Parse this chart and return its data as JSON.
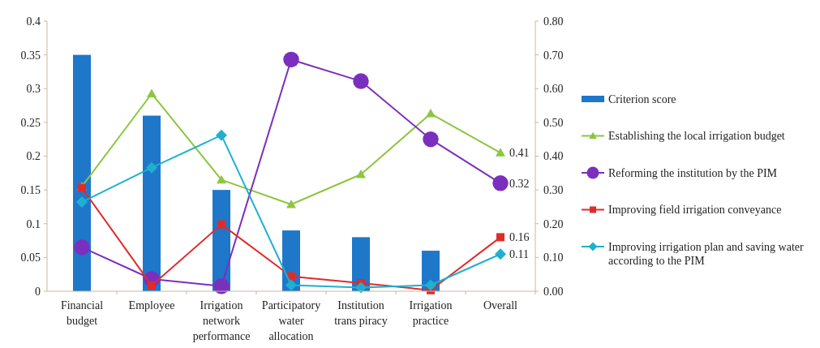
{
  "chart_data": {
    "type": "bar",
    "categories": [
      "Financial budget",
      "Employee",
      "Irrigation network performance",
      "Participatory water allocation",
      "Institution trans piracy",
      "Irrigation practice",
      "Overall"
    ],
    "series": [
      {
        "name": "Criterion score",
        "color": "#1f77c9",
        "values": [
          0.35,
          0.26,
          0.15,
          0.09,
          0.08,
          0.06,
          null
        ]
      },
      {
        "name": "Establishing the local irrigation budget",
        "type": "line",
        "axis": "y2",
        "marker": "triangle",
        "color": "#8dc63f",
        "values": [
          0.31,
          0.585,
          0.33,
          0.257,
          0.346,
          0.526,
          0.41
        ],
        "value_labels": [
          null,
          null,
          null,
          null,
          null,
          null,
          "0.41"
        ]
      },
      {
        "name": "Reforming the institution by the PIM",
        "type": "line",
        "axis": "y2",
        "marker": "circle",
        "color": "#7b2fbe",
        "values": [
          0.13,
          0.036,
          0.015,
          0.686,
          0.622,
          0.45,
          0.32
        ],
        "value_labels": [
          null,
          null,
          null,
          null,
          null,
          null,
          "0.32"
        ]
      },
      {
        "name": "Improving field irrigation conveyance",
        "type": "line",
        "axis": "y2",
        "marker": "square",
        "color": "#e02b2b",
        "values": [
          0.306,
          0.017,
          0.198,
          0.044,
          0.024,
          0.003,
          0.16
        ],
        "value_labels": [
          null,
          null,
          null,
          null,
          null,
          null,
          "0.16"
        ]
      },
      {
        "name": "Improving irrigation plan and saving water according to the PIM",
        "type": "line",
        "axis": "y2",
        "marker": "diamond",
        "color": "#1fb0d0",
        "values": [
          0.264,
          0.366,
          0.462,
          0.018,
          0.011,
          0.018,
          0.11
        ],
        "value_labels": [
          null,
          null,
          null,
          null,
          null,
          null,
          "0.11"
        ]
      }
    ],
    "ylim": [
      0,
      0.4
    ],
    "yticks": [
      0,
      0.05,
      0.1,
      0.15,
      0.2,
      0.25,
      0.3,
      0.35,
      0.4
    ],
    "y2lim": [
      0,
      0.8
    ],
    "y2ticks": [
      {
        "value": 0,
        "label": "0.00"
      },
      {
        "value": 0.1,
        "label": "0.10"
      },
      {
        "value": 0.2,
        "label": "0.20"
      },
      {
        "value": 0.3,
        "label": "0.30"
      },
      {
        "value": 0.4,
        "label": "0.40"
      },
      {
        "value": 0.5,
        "label": "0.50"
      },
      {
        "value": 0.6,
        "label": "0.60"
      },
      {
        "value": 0.7,
        "label": "0.70"
      },
      {
        "value": 0.8,
        "label": "0.80"
      }
    ],
    "grid": false,
    "legend": "right"
  }
}
